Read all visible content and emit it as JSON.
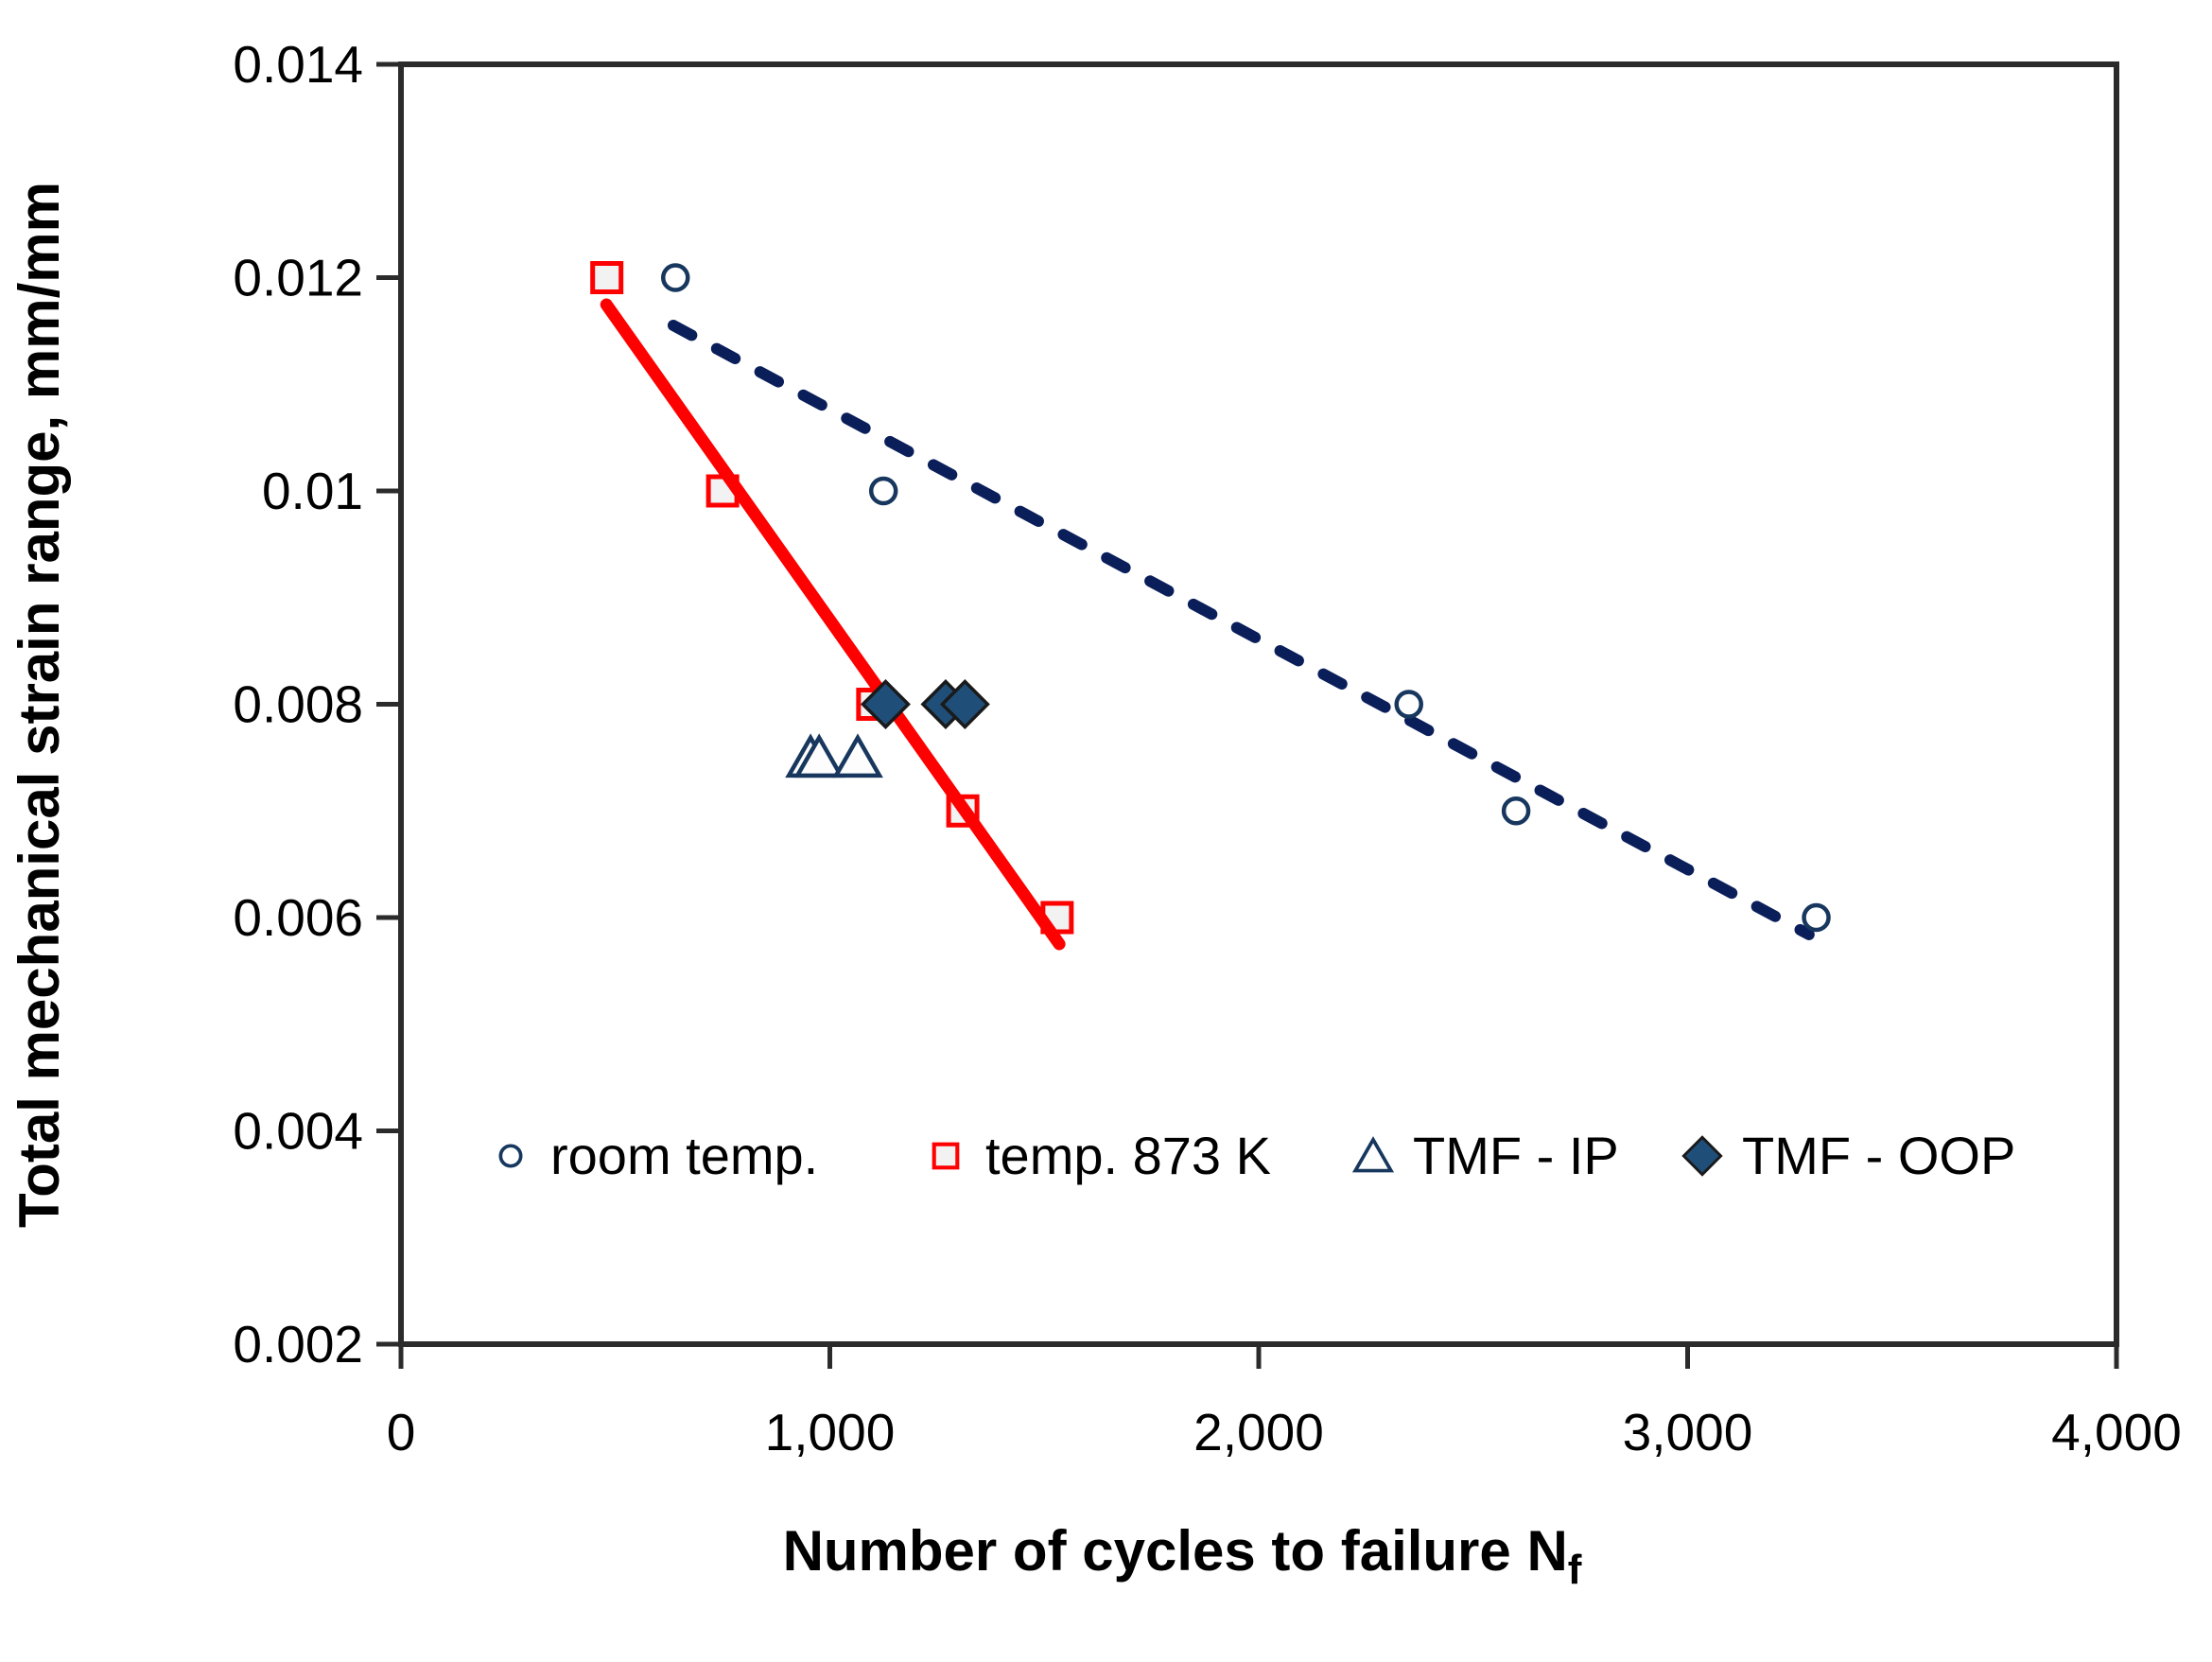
{
  "chart_data": {
    "type": "scatter",
    "title": "",
    "xlabel_main": "Number of cycles to failure N",
    "xlabel_sub": "f",
    "ylabel": "Total mechanical strain range, mm/mm",
    "grid": false,
    "legend_position": "inside-bottom",
    "x_axis": {
      "min": 0,
      "max": 4000,
      "ticks": [
        {
          "value": 0,
          "label": "0"
        },
        {
          "value": 1000,
          "label": "1,000"
        },
        {
          "value": 2000,
          "label": "2,000"
        },
        {
          "value": 3000,
          "label": "3,000"
        },
        {
          "value": 4000,
          "label": "4,000"
        }
      ]
    },
    "y_axis": {
      "min": 0.002,
      "max": 0.014,
      "ticks": [
        {
          "value": 0.002,
          "label": "0.002"
        },
        {
          "value": 0.004,
          "label": "0.004"
        },
        {
          "value": 0.006,
          "label": "0.006"
        },
        {
          "value": 0.008,
          "label": "0.008"
        },
        {
          "value": 0.01,
          "label": "0.01"
        },
        {
          "value": 0.012,
          "label": "0.012"
        },
        {
          "value": 0.014,
          "label": "0.014"
        }
      ]
    },
    "series": [
      {
        "name": "room temp.",
        "marker": "circle",
        "stroke": "#17375E",
        "fill": "#FFFFFF",
        "points": [
          [
            640,
            0.012
          ],
          [
            1125,
            0.01
          ],
          [
            2350,
            0.008
          ],
          [
            2600,
            0.007
          ],
          [
            3300,
            0.006
          ]
        ]
      },
      {
        "name": "temp. 873 K",
        "marker": "square",
        "stroke": "#FF0000",
        "fill": "#F2F2F2",
        "points": [
          [
            480,
            0.012
          ],
          [
            750,
            0.01
          ],
          [
            1100,
            0.008
          ],
          [
            1310,
            0.007
          ],
          [
            1530,
            0.006
          ]
        ]
      },
      {
        "name": "TMF - IP",
        "marker": "triangle",
        "stroke": "#17375E",
        "fill": "#FDFDFD",
        "points": [
          [
            955,
            0.0075
          ],
          [
            975,
            0.0075
          ],
          [
            1065,
            0.0075
          ]
        ]
      },
      {
        "name": "TMF - OOP",
        "marker": "diamond",
        "stroke": "#1A1A1A",
        "fill": "#1F4E79",
        "points": [
          [
            1130,
            0.008
          ],
          [
            1270,
            0.008
          ],
          [
            1315,
            0.008
          ]
        ]
      }
    ],
    "trendlines": [
      {
        "for_series": "temp. 873 K",
        "style": "solid",
        "color": "#FF0000",
        "from": [
          479,
          0.011747
        ],
        "to": [
          1535,
          0.005752
        ]
      },
      {
        "for_series": "room temp.",
        "style": "dashed",
        "color": "#0A1E5A",
        "from": [
          635,
          0.011552
        ],
        "to": [
          3283,
          0.005841
        ]
      }
    ]
  }
}
